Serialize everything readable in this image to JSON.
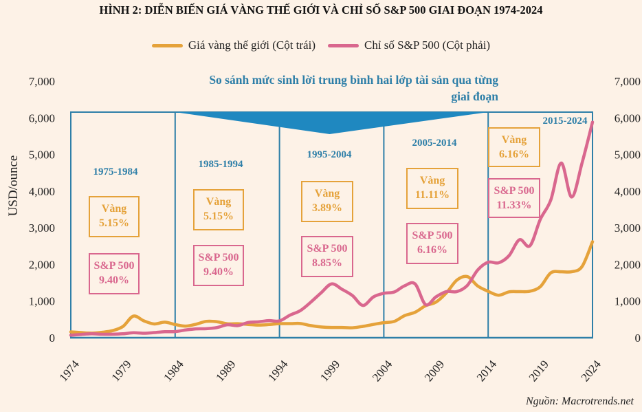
{
  "title": "HÌNH 2: DIỄN BIẾN GIÁ VÀNG THẾ GIỚI VÀ CHỈ SỐ S&P 500 GIAI ĐOẠN 1974-2024",
  "source": "Nguồn: Macrotrends.net",
  "colors": {
    "background": "#fdf2e7",
    "gold": "#e5a23a",
    "sp500": "#d9678e",
    "frame": "#2e7fa8",
    "banner": "#1f88c0",
    "period_label": "#2e7fa8"
  },
  "chart_data": {
    "type": "line",
    "title": "HÌNH 2: DIỄN BIẾN GIÁ VÀNG THẾ GIỚI VÀ CHỈ SỐ S&P 500 GIAI ĐOẠN 1974-2024",
    "annotation_title": "So sánh mức sinh lời trung bình hai lớp tài sản qua từng giai đoạn",
    "annotation_title_lines": [
      "So sánh mức sinh lời trung bình hai lớp tài sản qua từng",
      "giai đoạn"
    ],
    "ylabel": "USD/ounce",
    "xlabel": "",
    "xlim": [
      1974,
      2024
    ],
    "ylim_left": [
      0,
      7000
    ],
    "ylim_right": [
      0,
      7000
    ],
    "x_ticks": [
      "1974",
      "1979",
      "1984",
      "1989",
      "1994",
      "1999",
      "2004",
      "2009",
      "2014",
      "2019",
      "2024"
    ],
    "y_ticks_left": [
      "0",
      "1,000",
      "2,000",
      "3,000",
      "4,000",
      "5,000",
      "6,000",
      "7,000"
    ],
    "y_ticks_right": [
      "0",
      "1,000",
      "2,000",
      "3,000",
      "4,000",
      "5,000",
      "6,000",
      "7,000"
    ],
    "grid": false,
    "legend_position": "top-center",
    "legend": [
      "Giá vàng thế giới (Cột trái)",
      "Chỉ số S&P 500 (Cột phải)"
    ],
    "series": [
      {
        "name": "Giá vàng thế giới (Cột trái)",
        "axis": "left",
        "x": [
          1974,
          1975,
          1976,
          1977,
          1978,
          1979,
          1980,
          1981,
          1982,
          1983,
          1984,
          1985,
          1986,
          1987,
          1988,
          1989,
          1990,
          1991,
          1992,
          1993,
          1994,
          1995,
          1996,
          1997,
          1998,
          1999,
          2000,
          2001,
          2002,
          2003,
          2004,
          2005,
          2006,
          2007,
          2008,
          2009,
          2010,
          2011,
          2012,
          2013,
          2014,
          2015,
          2016,
          2017,
          2018,
          2019,
          2020,
          2021,
          2022,
          2023,
          2024
        ],
        "values": [
          160,
          140,
          125,
          148,
          193,
          307,
          590,
          460,
          375,
          424,
          360,
          317,
          368,
          447,
          437,
          381,
          383,
          362,
          344,
          360,
          384,
          384,
          388,
          331,
          294,
          279,
          279,
          271,
          310,
          363,
          410,
          445,
          604,
          695,
          872,
          972,
          1225,
          1572,
          1669,
          1411,
          1266,
          1160,
          1251,
          1257,
          1268,
          1393,
          1770,
          1799,
          1800,
          1943,
          2620
        ]
      },
      {
        "name": "Chỉ số S&P 500 (Cột phải)",
        "axis": "right",
        "x": [
          1974,
          1975,
          1976,
          1977,
          1978,
          1979,
          1980,
          1981,
          1982,
          1983,
          1984,
          1985,
          1986,
          1987,
          1988,
          1989,
          1990,
          1991,
          1992,
          1993,
          1994,
          1995,
          1996,
          1997,
          1998,
          1999,
          2000,
          2001,
          2002,
          2003,
          2004,
          2005,
          2006,
          2007,
          2008,
          2009,
          2010,
          2011,
          2012,
          2013,
          2014,
          2015,
          2016,
          2017,
          2018,
          2019,
          2020,
          2021,
          2022,
          2023,
          2024
        ],
        "values": [
          68,
          90,
          107,
          95,
          96,
          107,
          135,
          122,
          140,
          164,
          167,
          211,
          242,
          247,
          277,
          353,
          330,
          417,
          435,
          466,
          459,
          615,
          740,
          970,
          1229,
          1469,
          1320,
          1148,
          880,
          1112,
          1212,
          1248,
          1418,
          1468,
          903,
          1115,
          1258,
          1258,
          1426,
          1848,
          2059,
          2044,
          2239,
          2674,
          2507,
          3231,
          3756,
          4766,
          3840,
          4770,
          5882
        ]
      }
    ],
    "periods": [
      {
        "label": "1975-1984",
        "start": 1974,
        "end": 1984,
        "gold_label": "Vàng",
        "gold_return": "5.15%",
        "sp_label": "S&P 500",
        "sp_return": "9.40%"
      },
      {
        "label": "1985-1994",
        "start": 1984,
        "end": 1994,
        "gold_label": "Vàng",
        "gold_return": "5.15%",
        "sp_label": "S&P 500",
        "sp_return": "9.40%"
      },
      {
        "label": "1995-2004",
        "start": 1994,
        "end": 2004,
        "gold_label": "Vàng",
        "gold_return": "3.89%",
        "sp_label": "S&P 500",
        "sp_return": "8.85%"
      },
      {
        "label": "2005-2014",
        "start": 2004,
        "end": 2014,
        "gold_label": "Vàng",
        "gold_return": "11.11%",
        "sp_label": "S&P 500",
        "sp_return": "6.16%"
      },
      {
        "label": "2015-2024",
        "start": 2014,
        "end": 2024,
        "gold_label": "Vàng",
        "gold_return": "6.16%",
        "sp_label": "S&P 500",
        "sp_return": "11.33%"
      }
    ]
  }
}
